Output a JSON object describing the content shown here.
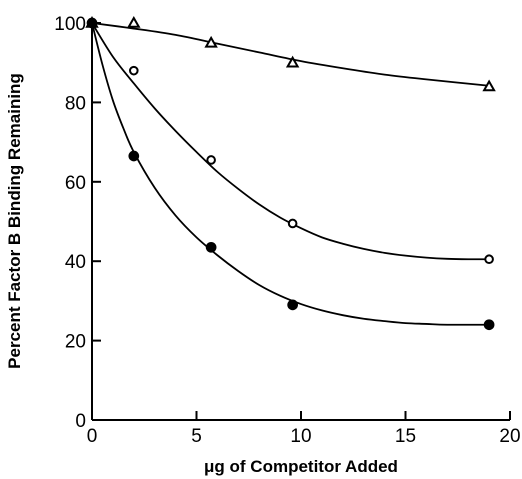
{
  "chart_data": {
    "type": "scatter",
    "xlabel": "μg of Competitor Added",
    "ylabel": "Percent Factor B Binding Remaining",
    "xlim": [
      0,
      20
    ],
    "ylim": [
      0,
      100
    ],
    "x_ticks": [
      0,
      5,
      10,
      15,
      20
    ],
    "y_ticks": [
      0,
      20,
      40,
      60,
      80,
      100
    ],
    "grid": false,
    "series": [
      {
        "marker": "open-triangle",
        "x": [
          0,
          2,
          5.7,
          9.6,
          19
        ],
        "y": [
          100,
          100,
          95,
          90,
          84
        ],
        "fit": [
          [
            0,
            100
          ],
          [
            2,
            98.6
          ],
          [
            4,
            97.0
          ],
          [
            6,
            94.8
          ],
          [
            8,
            92.6
          ],
          [
            10,
            90.4
          ],
          [
            12,
            88.6
          ],
          [
            14,
            87.0
          ],
          [
            16,
            85.8
          ],
          [
            19,
            84.2
          ]
        ]
      },
      {
        "marker": "open-circle",
        "x": [
          0,
          2,
          5.7,
          9.6,
          19
        ],
        "y": [
          100,
          88,
          65.5,
          49.5,
          40.5
        ],
        "fit": [
          [
            0,
            100
          ],
          [
            1,
            91.5
          ],
          [
            2,
            84.8
          ],
          [
            3,
            78.5
          ],
          [
            4,
            72.8
          ],
          [
            5,
            67.5
          ],
          [
            6,
            62.5
          ],
          [
            7,
            58.2
          ],
          [
            8,
            54.3
          ],
          [
            9,
            51.0
          ],
          [
            10,
            48.3
          ],
          [
            11,
            46.0
          ],
          [
            12,
            44.4
          ],
          [
            13,
            43.1
          ],
          [
            14,
            42.1
          ],
          [
            15,
            41.4
          ],
          [
            16,
            40.9
          ],
          [
            17,
            40.6
          ],
          [
            18,
            40.5
          ],
          [
            19,
            40.5
          ]
        ]
      },
      {
        "marker": "filled-circle",
        "x": [
          0,
          2,
          5.7,
          9.6,
          19
        ],
        "y": [
          100,
          66.5,
          43.5,
          29,
          24
        ],
        "fit": [
          [
            0,
            100
          ],
          [
            0.5,
            89.5
          ],
          [
            1,
            80.5
          ],
          [
            1.5,
            73.5
          ],
          [
            2,
            67.5
          ],
          [
            3,
            58.5
          ],
          [
            4,
            51.5
          ],
          [
            5,
            46.0
          ],
          [
            6,
            41.5
          ],
          [
            7,
            37.5
          ],
          [
            8,
            34.0
          ],
          [
            9,
            31.3
          ],
          [
            10,
            29.2
          ],
          [
            11,
            27.6
          ],
          [
            12,
            26.4
          ],
          [
            13,
            25.5
          ],
          [
            14,
            24.9
          ],
          [
            15,
            24.4
          ],
          [
            16,
            24.2
          ],
          [
            17,
            24.0
          ],
          [
            19,
            24.0
          ]
        ]
      }
    ]
  }
}
